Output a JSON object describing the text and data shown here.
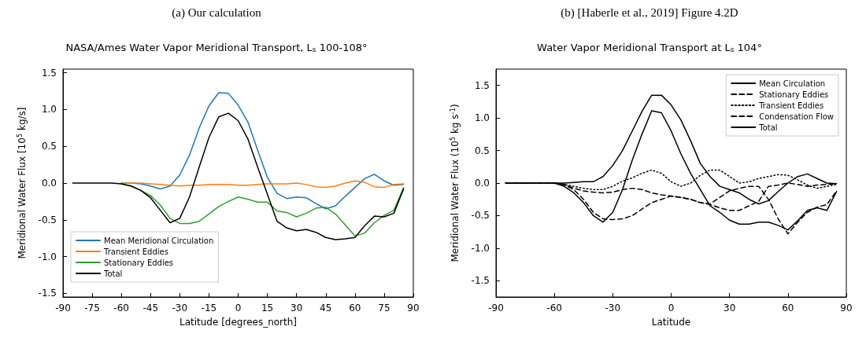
{
  "chart_data": [
    {
      "type": "line",
      "annotations": [
        "(a) Our calculation"
      ],
      "title": "NASA/Ames Water Vapor Meridional Transport, L$_{s}$ 100-108°",
      "xlabel": "Latitude [degrees_north]",
      "ylabel": "Meridional Water Flux [10$^{5}$ kg/s]",
      "x": [
        -85,
        -80,
        -75,
        -70,
        -65,
        -60,
        -55,
        -50,
        -45,
        -40,
        -35,
        -30,
        -25,
        -20,
        -15,
        -10,
        -5,
        0,
        5,
        10,
        15,
        20,
        25,
        30,
        35,
        40,
        45,
        50,
        55,
        60,
        65,
        70,
        75,
        80,
        85
      ],
      "series": [
        {
          "name": "Mean Meridional Circulation",
          "color": "#1f77b4",
          "line_style": "solid",
          "values": [
            null,
            null,
            null,
            null,
            null,
            0,
            0,
            -0.01,
            -0.04,
            -0.08,
            -0.04,
            0.11,
            0.38,
            0.75,
            1.05,
            1.23,
            1.22,
            1.06,
            0.83,
            0.45,
            0.08,
            -0.14,
            -0.21,
            -0.19,
            -0.2,
            -0.28,
            -0.35,
            -0.31,
            -0.18,
            -0.06,
            0.06,
            0.12,
            0.03,
            -0.03,
            -0.02
          ]
        },
        {
          "name": "Transient Eddies",
          "color": "#ff7f0e",
          "line_style": "solid",
          "values": [
            null,
            null,
            null,
            null,
            null,
            0,
            0,
            0,
            -0.01,
            -0.02,
            -0.03,
            -0.04,
            -0.03,
            -0.03,
            -0.02,
            -0.02,
            -0.02,
            -0.03,
            -0.03,
            -0.02,
            -0.01,
            -0.01,
            -0.01,
            0,
            -0.02,
            -0.05,
            -0.06,
            -0.04,
            0,
            0.03,
            0.01,
            -0.05,
            -0.06,
            -0.02,
            -0.01
          ]
        },
        {
          "name": "Stationary Eddies",
          "color": "#2ca02c",
          "line_style": "solid",
          "values": [
            null,
            null,
            null,
            null,
            null,
            -0.01,
            -0.04,
            -0.1,
            -0.17,
            -0.3,
            -0.48,
            -0.55,
            -0.55,
            -0.52,
            -0.42,
            -0.32,
            -0.25,
            -0.19,
            -0.22,
            -0.26,
            -0.26,
            -0.38,
            -0.4,
            -0.46,
            -0.41,
            -0.34,
            -0.33,
            -0.42,
            -0.57,
            -0.72,
            -0.68,
            -0.54,
            -0.44,
            -0.37,
            -0.06
          ]
        },
        {
          "name": "Total",
          "color": "#000000",
          "line_style": "solid",
          "values": [
            0,
            0,
            0,
            0,
            0,
            -0.01,
            -0.04,
            -0.1,
            -0.2,
            -0.37,
            -0.54,
            -0.48,
            -0.19,
            0.22,
            0.62,
            0.9,
            0.95,
            0.85,
            0.6,
            0.22,
            -0.15,
            -0.52,
            -0.61,
            -0.65,
            -0.63,
            -0.67,
            -0.74,
            -0.77,
            -0.76,
            -0.74,
            -0.58,
            -0.45,
            -0.46,
            -0.41,
            -0.08
          ]
        }
      ],
      "xlim": [
        -90,
        90
      ],
      "xticks": [
        -90,
        -75,
        -60,
        -45,
        -30,
        -15,
        0,
        15,
        30,
        45,
        60,
        75,
        90
      ],
      "ylim": [
        -1.55,
        1.55
      ],
      "yticks": [
        -1.5,
        {
          "value": -1,
          "label": "-1.0"
        },
        -0.5,
        {
          "value": 0,
          "label": "0.0"
        },
        0.5,
        {
          "value": 1,
          "label": "1.0"
        },
        1.5
      ],
      "legend": "bottom left",
      "grid": false,
      "marker": "none"
    },
    {
      "type": "line",
      "annotations": [
        "(b) [Haberle et al., 2019] Figure 4.2D"
      ],
      "title": "Water Vapor Meridional Transport at L$_{s}$ 104°",
      "xlabel": "Latitude",
      "ylabel": "Meridional Water Flux (10$^{5}$ kg s$^{-1}$)",
      "x": [
        -85,
        -80,
        -75,
        -70,
        -65,
        -60,
        -55,
        -50,
        -45,
        -40,
        -35,
        -30,
        -25,
        -20,
        -15,
        -10,
        -5,
        0,
        5,
        10,
        15,
        20,
        25,
        30,
        35,
        40,
        45,
        50,
        55,
        60,
        65,
        70,
        75,
        80,
        85
      ],
      "series": [
        {
          "name": "Mean Circulation",
          "color": "#000000",
          "line_style": "solid",
          "values": [
            0,
            0,
            0,
            0,
            0,
            0,
            0,
            0.01,
            0.02,
            0.02,
            0.1,
            0.27,
            0.5,
            0.8,
            1.1,
            1.35,
            1.35,
            1.2,
            0.97,
            0.65,
            0.3,
            0.1,
            -0.05,
            -0.1,
            -0.15,
            -0.25,
            -0.32,
            -0.27,
            -0.13,
            0,
            0.1,
            0.14,
            0.07,
            0,
            -0.01
          ]
        },
        {
          "name": "Stationary Eddies",
          "color": "#000000",
          "line_style": "dashed",
          "values": [
            0,
            0,
            0,
            0,
            0,
            0,
            -0.03,
            -0.1,
            -0.25,
            -0.45,
            -0.55,
            -0.56,
            -0.55,
            -0.5,
            -0.4,
            -0.3,
            -0.25,
            -0.2,
            -0.22,
            -0.25,
            -0.3,
            -0.32,
            -0.22,
            -0.12,
            -0.08,
            -0.05,
            -0.05,
            -0.25,
            -0.55,
            -0.78,
            -0.6,
            -0.45,
            -0.37,
            -0.33,
            -0.12
          ]
        },
        {
          "name": "Transient Eddies",
          "color": "#000000",
          "line_style": "dotted",
          "values": [
            0,
            0,
            0,
            0,
            0,
            0,
            -0.02,
            -0.05,
            -0.08,
            -0.1,
            -0.1,
            -0.05,
            0.03,
            0.08,
            0.15,
            0.2,
            0.15,
            0.02,
            -0.05,
            0,
            0.12,
            0.2,
            0.2,
            0.1,
            0,
            0.02,
            0.07,
            0.1,
            0.13,
            0.12,
            0.05,
            -0.03,
            -0.08,
            -0.05,
            -0.02
          ]
        },
        {
          "name": "Condensation Flow",
          "color": "#000000",
          "line_style": "dashed",
          "values": [
            0,
            0,
            0,
            0,
            0,
            0,
            -0.02,
            -0.08,
            -0.12,
            -0.14,
            -0.15,
            -0.14,
            -0.1,
            -0.08,
            -0.1,
            -0.15,
            -0.18,
            -0.2,
            -0.22,
            -0.25,
            -0.3,
            -0.33,
            -0.38,
            -0.42,
            -0.42,
            -0.35,
            -0.28,
            -0.05,
            -0.03,
            0,
            -0.02,
            -0.05,
            -0.03,
            -0.02,
            -0.01
          ]
        },
        {
          "name": "Total",
          "color": "#000000",
          "line_style": "solid",
          "values": [
            0,
            0,
            0,
            0,
            0,
            0,
            -0.05,
            -0.15,
            -0.3,
            -0.5,
            -0.6,
            -0.45,
            -0.1,
            0.35,
            0.75,
            1.11,
            1.08,
            0.8,
            0.45,
            0.15,
            -0.1,
            -0.35,
            -0.45,
            -0.57,
            -0.63,
            -0.63,
            -0.6,
            -0.6,
            -0.65,
            -0.72,
            -0.58,
            -0.42,
            -0.38,
            -0.42,
            -0.13
          ]
        }
      ],
      "xlim": [
        -90,
        90
      ],
      "xticks": [
        -90,
        -60,
        -30,
        0,
        30,
        60,
        90
      ],
      "ylim": [
        -1.75,
        1.75
      ],
      "yticks": [
        -1.5,
        {
          "value": -1,
          "label": "-1.0"
        },
        -0.5,
        {
          "value": 0,
          "label": "0.0"
        },
        0.5,
        {
          "value": 1,
          "label": "1.0"
        },
        1.5
      ],
      "legend": "top right",
      "grid": false,
      "marker": "none"
    }
  ]
}
